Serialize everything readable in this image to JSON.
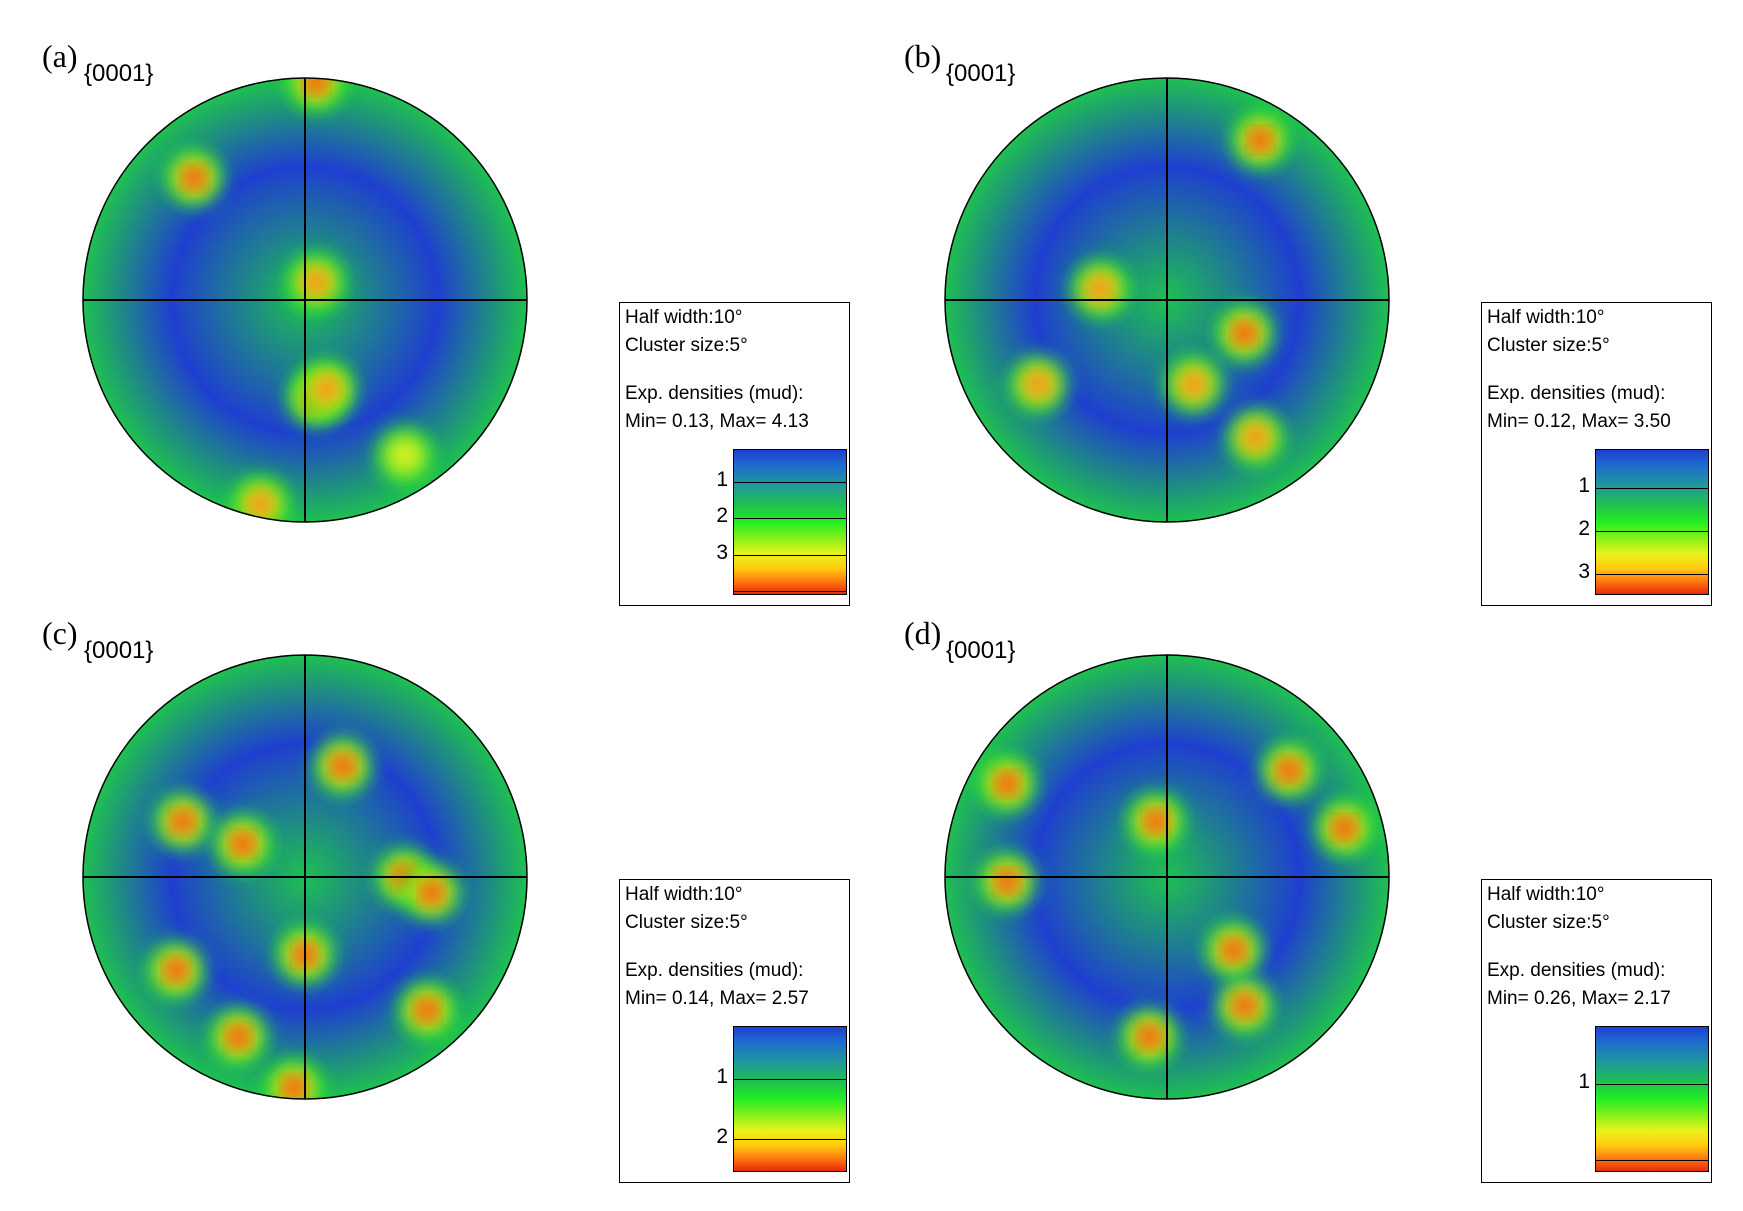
{
  "chart_data": [
    {
      "type": "heatmap",
      "panel_label": "(a)",
      "title": "{0001}",
      "legend": {
        "half_width": "Half width:10°",
        "cluster_size": "Cluster size:5°",
        "densities_label": "Exp. densities (mud):",
        "min_max": "Min= 0.13, Max= 4.13",
        "min": 0.13,
        "max": 4.13,
        "levels": [
          1,
          2,
          3,
          4
        ],
        "tick_labels": [
          "1",
          "2",
          "3"
        ]
      },
      "colormap": [
        "#1f3fd0",
        "#1fc050",
        "#22ee22",
        "#e8f21a",
        "#ff7a10",
        "#e82a0a"
      ],
      "hotspots": [
        [
          0.05,
          0.98,
          4.1
        ],
        [
          -0.5,
          0.55,
          3.6
        ],
        [
          0.05,
          -0.44,
          3.8
        ],
        [
          0.1,
          -0.4,
          3.2
        ],
        [
          0.05,
          0.08,
          2.6
        ],
        [
          -0.2,
          -0.92,
          2.4
        ],
        [
          0.45,
          -0.7,
          2.2
        ]
      ]
    },
    {
      "type": "heatmap",
      "panel_label": "(b)",
      "title": "{0001}",
      "legend": {
        "half_width": "Half width:10°",
        "cluster_size": "Cluster size:5°",
        "densities_label": "Exp. densities (mud):",
        "min_max": "Min= 0.12, Max= 3.50",
        "min": 0.12,
        "max": 3.5,
        "levels": [
          1,
          2,
          3
        ],
        "tick_labels": [
          "1",
          "2",
          "3"
        ]
      },
      "colormap": [
        "#1f3fd0",
        "#1fc050",
        "#22ee22",
        "#e8f21a",
        "#ff7a10",
        "#e82a0a"
      ],
      "hotspots": [
        [
          0.42,
          0.72,
          3.4
        ],
        [
          0.35,
          -0.15,
          3.5
        ],
        [
          -0.58,
          -0.38,
          2.8
        ],
        [
          0.4,
          -0.62,
          2.6
        ],
        [
          0.12,
          -0.38,
          2.4
        ],
        [
          -0.3,
          0.05,
          2.3
        ]
      ]
    },
    {
      "type": "heatmap",
      "panel_label": "(c)",
      "title": "{0001}",
      "legend": {
        "half_width": "Half width:10°",
        "cluster_size": "Cluster size:5°",
        "densities_label": "Exp. densities (mud):",
        "min_max": "Min= 0.14, Max= 2.57",
        "min": 0.14,
        "max": 2.57,
        "levels": [
          1,
          2
        ],
        "tick_labels": [
          "1",
          "2"
        ]
      },
      "colormap": [
        "#1f3fd0",
        "#1fc050",
        "#22ee22",
        "#e8f21a",
        "#ff7a10",
        "#e82a0a"
      ],
      "hotspots": [
        [
          -0.05,
          -0.95,
          2.57
        ],
        [
          -0.58,
          -0.42,
          2.5
        ],
        [
          0.55,
          -0.6,
          2.5
        ],
        [
          0.0,
          -0.35,
          2.4
        ],
        [
          0.45,
          0.0,
          2.4
        ],
        [
          -0.55,
          0.25,
          2.3
        ],
        [
          -0.28,
          0.15,
          2.3
        ],
        [
          0.17,
          0.5,
          2.2
        ],
        [
          -0.3,
          -0.72,
          2.2
        ],
        [
          0.57,
          -0.07,
          2.1
        ]
      ]
    },
    {
      "type": "heatmap",
      "panel_label": "(d)",
      "title": "{0001}",
      "legend": {
        "half_width": "Half width:10°",
        "cluster_size": "Cluster size:5°",
        "densities_label": "Exp. densities (mud):",
        "min_max": "Min= 0.26, Max= 2.17",
        "min": 0.26,
        "max": 2.17,
        "levels": [
          1,
          2
        ],
        "tick_labels": [
          "1"
        ]
      },
      "colormap": [
        "#1f3fd0",
        "#1fc050",
        "#22ee22",
        "#e8f21a",
        "#ff7a10",
        "#e82a0a"
      ],
      "hotspots": [
        [
          -0.72,
          0.42,
          2.17
        ],
        [
          0.3,
          -0.33,
          2.17
        ],
        [
          -0.08,
          -0.72,
          2.1
        ],
        [
          -0.72,
          -0.02,
          2.0
        ],
        [
          -0.05,
          0.25,
          2.0
        ],
        [
          0.8,
          0.22,
          1.9
        ],
        [
          0.55,
          0.48,
          1.8
        ],
        [
          0.35,
          -0.58,
          1.8
        ]
      ]
    }
  ]
}
